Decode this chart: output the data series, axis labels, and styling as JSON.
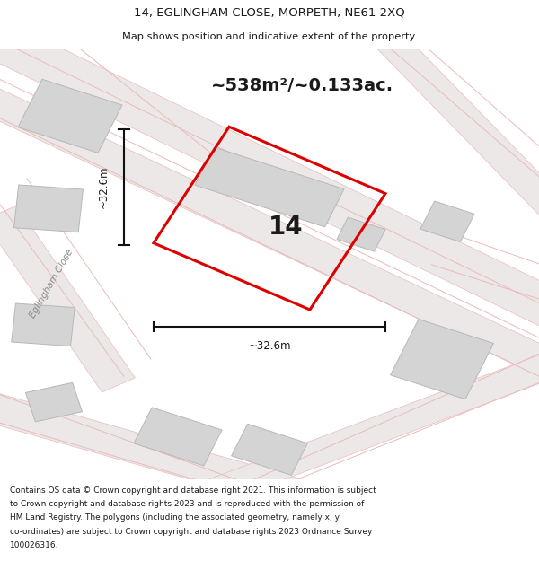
{
  "title_line1": "14, EGLINGHAM CLOSE, MORPETH, NE61 2XQ",
  "title_line2": "Map shows position and indicative extent of the property.",
  "area_text": "~538m²/~0.133ac.",
  "plot_number": "14",
  "dim_horizontal": "~32.6m",
  "dim_vertical": "~32.6m",
  "road_label": "Eglingham Close",
  "footer_lines": [
    "Contains OS data © Crown copyright and database right 2021. This information is subject",
    "to Crown copyright and database rights 2023 and is reproduced with the permission of",
    "HM Land Registry. The polygons (including the associated geometry, namely x, y",
    "co-ordinates) are subject to Crown copyright and database rights 2023 Ordnance Survey",
    "100026316."
  ],
  "bg_color": "#ffffff",
  "map_bg": "#f7f4f4",
  "building_color": "#d4d4d4",
  "building_edge": "#b8b8b8",
  "road_line_color": "#e8bbbb",
  "road_fill_color": "#ede8e8",
  "plot_outline_color": "#dd0000",
  "dim_line_color": "#111111",
  "title_fontsize": 9.5,
  "subtitle_fontsize": 8.2,
  "area_fontsize": 14,
  "plot_num_fontsize": 20,
  "dim_fontsize": 8.5,
  "footer_fontsize": 6.5,
  "road_label_fontsize": 7.5
}
